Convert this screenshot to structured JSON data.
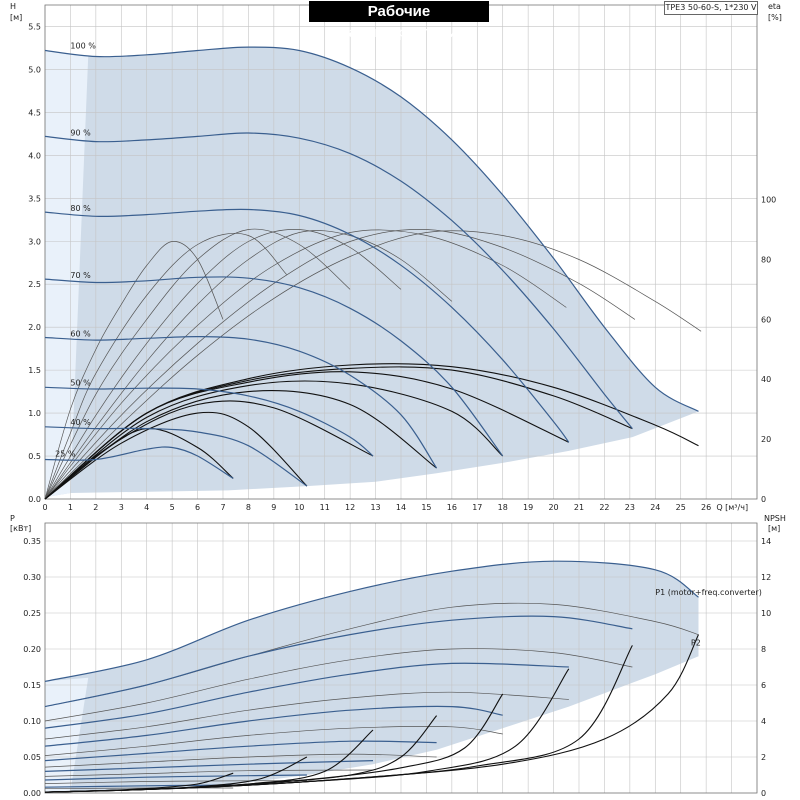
{
  "title": "Рабочие характеристики",
  "model": "TPE3 50-60-S, 1*230 V",
  "colors": {
    "envelope": "#cfdbe8",
    "envelope_light": "#e9f1fa",
    "speed_curve": "#3a5f8f",
    "efficiency": "#555555",
    "npsh": "#111111",
    "grid": "#c4c4c4"
  },
  "chart_data": [
    {
      "type": "line",
      "panel": "head",
      "xlabel": "Q [м³/ч]",
      "ylabel": "H",
      "ylabel_unit": "[м]",
      "y2label": "eta",
      "y2label_unit": "[%]",
      "xlim": [
        0,
        28
      ],
      "ylim": [
        0,
        5.75
      ],
      "y2lim": [
        0,
        100
      ],
      "x_ticks": [
        0,
        1,
        2,
        3,
        4,
        5,
        6,
        7,
        8,
        9,
        10,
        11,
        12,
        13,
        14,
        15,
        16,
        17,
        18,
        19,
        20,
        21,
        22,
        23,
        24,
        25,
        26
      ],
      "y_ticks": [
        0.0,
        0.5,
        1.0,
        1.5,
        2.0,
        2.5,
        3.0,
        3.5,
        4.0,
        4.5,
        5.0,
        5.5
      ],
      "y2_ticks": [
        0,
        20,
        40,
        60,
        80,
        100
      ],
      "grid": true,
      "speed_labels": [
        "100 %",
        "90 %",
        "80 %",
        "70 %",
        "60 %",
        "50 %",
        "40 %",
        "25 %"
      ],
      "series": [
        {
          "speed": "100 %",
          "x": [
            0,
            2,
            4,
            6,
            8,
            10,
            12,
            14,
            16,
            18,
            20,
            22,
            24,
            25.7
          ],
          "y": [
            5.22,
            5.15,
            5.17,
            5.22,
            5.26,
            5.22,
            5.02,
            4.68,
            4.18,
            3.54,
            2.8,
            2.0,
            1.3,
            1.02
          ]
        },
        {
          "speed": "90 %",
          "x": [
            0,
            2,
            4,
            6,
            8,
            10,
            12,
            14,
            16,
            18,
            20,
            22,
            23.1
          ],
          "y": [
            4.22,
            4.16,
            4.18,
            4.22,
            4.26,
            4.2,
            4.02,
            3.7,
            3.24,
            2.66,
            1.98,
            1.22,
            0.82
          ]
        },
        {
          "speed": "80 %",
          "x": [
            0,
            2,
            4,
            6,
            8,
            10,
            12,
            14,
            16,
            18,
            20,
            20.6
          ],
          "y": [
            3.34,
            3.29,
            3.31,
            3.35,
            3.37,
            3.3,
            3.08,
            2.72,
            2.23,
            1.62,
            0.9,
            0.66
          ]
        },
        {
          "speed": "70 %",
          "x": [
            0,
            2,
            4,
            6,
            8,
            10,
            12,
            14,
            16,
            18
          ],
          "y": [
            2.56,
            2.52,
            2.54,
            2.58,
            2.57,
            2.46,
            2.22,
            1.84,
            1.3,
            0.5
          ]
        },
        {
          "speed": "60 %",
          "x": [
            0,
            2,
            4,
            6,
            8,
            10,
            12,
            14,
            15.4
          ],
          "y": [
            1.88,
            1.85,
            1.87,
            1.89,
            1.86,
            1.72,
            1.44,
            0.98,
            0.36
          ]
        },
        {
          "speed": "50 %",
          "x": [
            0,
            2,
            4,
            6,
            8,
            10,
            12,
            12.9
          ],
          "y": [
            1.3,
            1.28,
            1.29,
            1.28,
            1.2,
            1.02,
            0.72,
            0.5
          ]
        },
        {
          "speed": "40 %",
          "x": [
            0,
            2,
            4,
            6,
            8,
            10.3
          ],
          "y": [
            0.84,
            0.82,
            0.82,
            0.78,
            0.62,
            0.15
          ]
        },
        {
          "speed": "25 %",
          "x": [
            0,
            2,
            4,
            5,
            6,
            7.4
          ],
          "y": [
            0.46,
            0.46,
            0.58,
            0.6,
            0.5,
            0.24
          ]
        }
      ],
      "efficiency_y2": [
        {
          "x": [
            0,
            1,
            2,
            3,
            4,
            5,
            6,
            7
          ],
          "y": [
            0,
            30,
            50,
            65,
            78,
            86,
            80,
            60
          ]
        },
        {
          "x": [
            0,
            1,
            2,
            4,
            6,
            8,
            9.5
          ],
          "y": [
            0,
            22,
            42,
            68,
            85,
            88,
            75
          ]
        },
        {
          "x": [
            0,
            2,
            4,
            6,
            8,
            10,
            12
          ],
          "y": [
            0,
            35,
            60,
            80,
            90,
            85,
            70
          ]
        },
        {
          "x": [
            0,
            2,
            4,
            6,
            8,
            10,
            12,
            14
          ],
          "y": [
            0,
            28,
            52,
            72,
            86,
            90,
            84,
            70
          ]
        },
        {
          "x": [
            0,
            2,
            4,
            6,
            8,
            10,
            12,
            14,
            16
          ],
          "y": [
            0,
            24,
            46,
            65,
            80,
            89,
            88,
            80,
            66
          ]
        },
        {
          "x": [
            0,
            3,
            6,
            9,
            12,
            15,
            18,
            20.5
          ],
          "y": [
            0,
            32,
            58,
            78,
            89,
            88,
            78,
            64
          ]
        },
        {
          "x": [
            0,
            3,
            6,
            9,
            12,
            15,
            18,
            21,
            23.2
          ],
          "y": [
            0,
            28,
            52,
            72,
            86,
            90,
            84,
            72,
            60
          ]
        },
        {
          "x": [
            0,
            3,
            6,
            9,
            12,
            15,
            18,
            21,
            24,
            25.8
          ],
          "y": [
            0,
            25,
            48,
            67,
            81,
            89,
            88,
            80,
            66,
            56
          ]
        }
      ],
      "npsh_on_head": [
        {
          "x": [
            0,
            2,
            4,
            6,
            7.4
          ],
          "y": [
            0.0,
            0.5,
            0.82,
            0.6,
            0.24
          ]
        },
        {
          "x": [
            0,
            3,
            6,
            8,
            10.3
          ],
          "y": [
            0.0,
            0.65,
            1.0,
            0.84,
            0.15
          ]
        },
        {
          "x": [
            0,
            3,
            6,
            9,
            12.9
          ],
          "y": [
            0.0,
            0.7,
            1.1,
            1.06,
            0.5
          ]
        },
        {
          "x": [
            0,
            4,
            8,
            12,
            15.4
          ],
          "y": [
            0.0,
            0.9,
            1.25,
            1.1,
            0.36
          ]
        },
        {
          "x": [
            0,
            4,
            8,
            12,
            16,
            18
          ],
          "y": [
            0.0,
            0.95,
            1.32,
            1.34,
            1.02,
            0.5
          ]
        },
        {
          "x": [
            0,
            4,
            8,
            12,
            16,
            20.6
          ],
          "y": [
            0.0,
            1.0,
            1.36,
            1.48,
            1.28,
            0.66
          ]
        },
        {
          "x": [
            0,
            4,
            8,
            12,
            16,
            20,
            23.1
          ],
          "y": [
            0.0,
            1.0,
            1.38,
            1.52,
            1.5,
            1.2,
            0.82
          ]
        },
        {
          "x": [
            0,
            4,
            8,
            12,
            16,
            20,
            24,
            25.7
          ],
          "y": [
            0.0,
            1.0,
            1.4,
            1.56,
            1.54,
            1.3,
            0.86,
            0.62
          ]
        }
      ]
    },
    {
      "type": "line",
      "panel": "power",
      "ylabel": "P",
      "ylabel_unit": "[кВт]",
      "y2label": "NPSH",
      "y2label_unit": "[м]",
      "xlim": [
        0,
        28
      ],
      "ylim": [
        0,
        0.375
      ],
      "y2lim": [
        0,
        15
      ],
      "y_ticks": [
        0.0,
        0.05,
        0.1,
        0.15,
        0.2,
        0.25,
        0.3,
        0.35
      ],
      "y2_ticks": [
        0,
        2,
        4,
        6,
        8,
        10,
        12,
        14
      ],
      "grid": true,
      "series_labels": [
        "P1 (motor+freq.converter)",
        "P2"
      ],
      "p1": [
        {
          "x": [
            0,
            4,
            8,
            12,
            16,
            20,
            24,
            25.7
          ],
          "y": [
            0.155,
            0.185,
            0.24,
            0.28,
            0.308,
            0.322,
            0.31,
            0.272
          ]
        },
        {
          "x": [
            0,
            4,
            8,
            12,
            16,
            20,
            23.1
          ],
          "y": [
            0.12,
            0.15,
            0.19,
            0.22,
            0.24,
            0.245,
            0.228
          ]
        },
        {
          "x": [
            0,
            4,
            8,
            12,
            16,
            20.6
          ],
          "y": [
            0.09,
            0.11,
            0.14,
            0.165,
            0.18,
            0.175
          ]
        },
        {
          "x": [
            0,
            4,
            8,
            12,
            16,
            18
          ],
          "y": [
            0.065,
            0.08,
            0.1,
            0.115,
            0.12,
            0.108
          ]
        },
        {
          "x": [
            0,
            4,
            8,
            12,
            15.4
          ],
          "y": [
            0.045,
            0.055,
            0.065,
            0.072,
            0.07
          ]
        },
        {
          "x": [
            0,
            4,
            8,
            12.9
          ],
          "y": [
            0.03,
            0.035,
            0.04,
            0.045
          ]
        },
        {
          "x": [
            0,
            4,
            8,
            10.3
          ],
          "y": [
            0.018,
            0.022,
            0.024,
            0.025
          ]
        },
        {
          "x": [
            0,
            4,
            7.4
          ],
          "y": [
            0.008,
            0.01,
            0.011
          ]
        }
      ],
      "p2": [
        {
          "x": [
            0,
            4,
            8,
            12,
            16,
            20,
            24,
            25.7
          ],
          "y": [
            0.12,
            0.15,
            0.19,
            0.228,
            0.258,
            0.262,
            0.238,
            0.22
          ]
        },
        {
          "x": [
            0,
            4,
            8,
            12,
            16,
            20,
            23.1
          ],
          "y": [
            0.1,
            0.125,
            0.158,
            0.185,
            0.2,
            0.195,
            0.175
          ]
        },
        {
          "x": [
            0,
            4,
            8,
            12,
            16,
            20.6
          ],
          "y": [
            0.075,
            0.092,
            0.115,
            0.132,
            0.14,
            0.13
          ]
        },
        {
          "x": [
            0,
            4,
            8,
            12,
            16,
            18
          ],
          "y": [
            0.052,
            0.065,
            0.08,
            0.09,
            0.092,
            0.082
          ]
        },
        {
          "x": [
            0,
            4,
            8,
            12,
            15.4
          ],
          "y": [
            0.036,
            0.043,
            0.05,
            0.054,
            0.05
          ]
        },
        {
          "x": [
            0,
            4,
            8,
            12.9
          ],
          "y": [
            0.023,
            0.027,
            0.031,
            0.032
          ]
        },
        {
          "x": [
            0,
            4,
            8,
            10.3
          ],
          "y": [
            0.013,
            0.016,
            0.017,
            0.017
          ]
        },
        {
          "x": [
            0,
            4,
            7.4
          ],
          "y": [
            0.006,
            0.007,
            0.007
          ]
        }
      ],
      "npsh_y2": [
        {
          "x": [
            0,
            2,
            4,
            6,
            7.4
          ],
          "y": [
            0.05,
            0.12,
            0.25,
            0.5,
            1.1
          ]
        },
        {
          "x": [
            0,
            3,
            6,
            8.5,
            10.3
          ],
          "y": [
            0.05,
            0.15,
            0.35,
            0.8,
            2.0
          ]
        },
        {
          "x": [
            0,
            4,
            8,
            11,
            12.9
          ],
          "y": [
            0.05,
            0.2,
            0.5,
            1.2,
            3.5
          ]
        },
        {
          "x": [
            0,
            4,
            8,
            12,
            14,
            15.4
          ],
          "y": [
            0.05,
            0.2,
            0.5,
            1.0,
            2.0,
            4.3
          ]
        },
        {
          "x": [
            0,
            5,
            10,
            14,
            16.5,
            18
          ],
          "y": [
            0.05,
            0.25,
            0.7,
            1.4,
            2.5,
            5.5
          ]
        },
        {
          "x": [
            0,
            5,
            10,
            15,
            18.5,
            20.6
          ],
          "y": [
            0.05,
            0.25,
            0.6,
            1.2,
            2.6,
            6.9
          ]
        },
        {
          "x": [
            0,
            6,
            12,
            17,
            21,
            23.1
          ],
          "y": [
            0.05,
            0.3,
            0.8,
            1.5,
            3.0,
            8.2
          ]
        },
        {
          "x": [
            0,
            6,
            12,
            18,
            22,
            24.5,
            25.7
          ],
          "y": [
            0.05,
            0.3,
            0.8,
            1.6,
            3.0,
            5.5,
            8.8
          ]
        }
      ]
    }
  ]
}
